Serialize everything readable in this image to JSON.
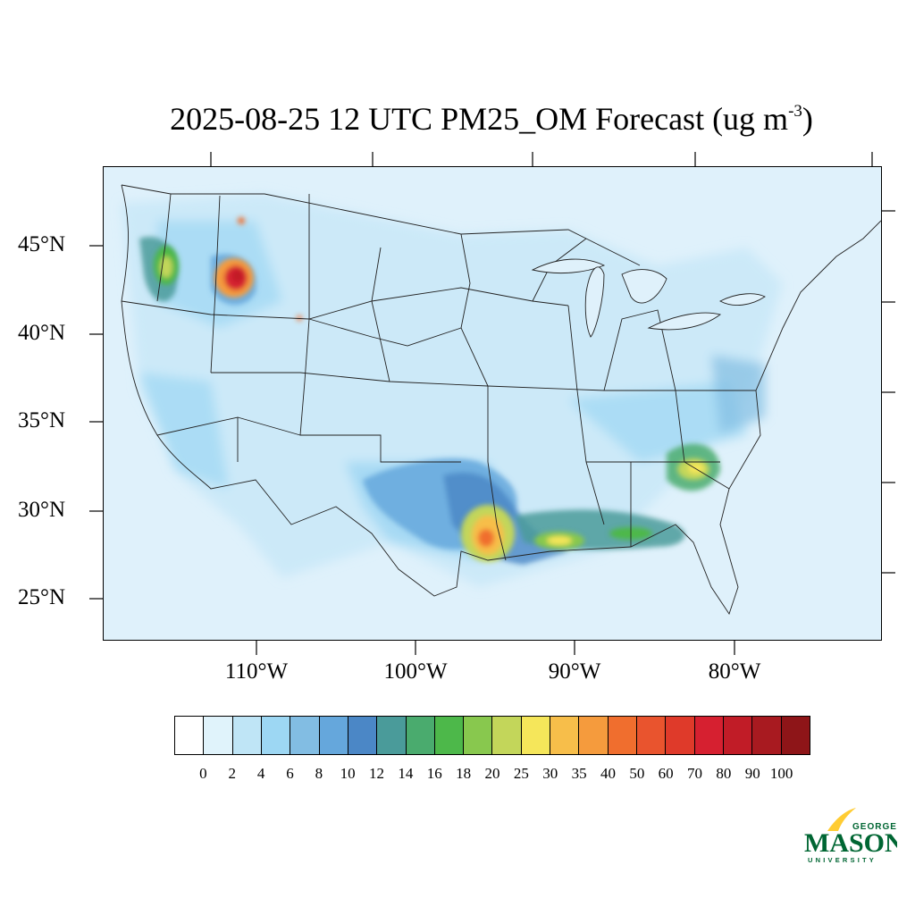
{
  "title": {
    "main": "2025-08-25 12 UTC PM25_OM Forecast (ug m",
    "sup": "-3",
    "close": ")"
  },
  "map": {
    "lat_labels": [
      "45°N",
      "40°N",
      "35°N",
      "30°N",
      "25°N"
    ],
    "lon_labels": [
      "110°W",
      "100°W",
      "90°W",
      "80°W"
    ]
  },
  "colorbar": {
    "colors": [
      "#ffffff",
      "#e0f3fb",
      "#bfe5f6",
      "#9dd7f3",
      "#82bde3",
      "#65a7dc",
      "#4b87c6",
      "#4a9b9a",
      "#4aab6e",
      "#4db84a",
      "#88c84e",
      "#c3d65a",
      "#f5e65a",
      "#f7be4a",
      "#f59b3d",
      "#f06e2e",
      "#e9542e",
      "#df3a2a",
      "#d62030",
      "#c11c27",
      "#a81a20",
      "#8e1518"
    ],
    "labels": [
      "0",
      "2",
      "4",
      "6",
      "8",
      "10",
      "12",
      "14",
      "16",
      "18",
      "20",
      "25",
      "30",
      "35",
      "40",
      "50",
      "60",
      "70",
      "80",
      "90",
      "100"
    ]
  },
  "logo": {
    "line1": "GEORGE",
    "line2": "MASON",
    "line3": "UNIVERSITY",
    "green": "#006633",
    "gold": "#ffcc33"
  }
}
